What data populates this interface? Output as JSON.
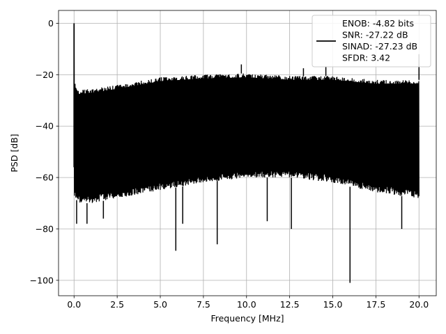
{
  "chart_data": {
    "type": "line",
    "xlabel": "Frequency [MHz]",
    "ylabel": "PSD [dB]",
    "xlim": [
      -0.9,
      21.0
    ],
    "ylim": [
      -106,
      5
    ],
    "xticks": [
      0.0,
      2.5,
      5.0,
      7.5,
      10.0,
      12.5,
      15.0,
      17.5,
      20.0
    ],
    "xtick_labels": [
      "0.0",
      "2.5",
      "5.0",
      "7.5",
      "10.0",
      "12.5",
      "15.0",
      "17.5",
      "20.0"
    ],
    "yticks": [
      0,
      -20,
      -40,
      -60,
      -80,
      -100
    ],
    "ytick_labels": [
      "0",
      "−20",
      "−40",
      "−60",
      "−80",
      "−100"
    ],
    "grid": true,
    "legend_position": "top-right",
    "series": [
      {
        "color": "#000000",
        "x_range": [
          0.0,
          20.0
        ],
        "peak": {
          "x": 0.0,
          "y": 0
        },
        "upper_envelope": {
          "x": [
            0.05,
            0.3,
            1.0,
            2.5,
            5.0,
            7.5,
            10.0,
            12.5,
            15.0,
            17.5,
            20.0
          ],
          "y": [
            -23,
            -26,
            -25.5,
            -24,
            -21,
            -20,
            -19.5,
            -20.5,
            -20.5,
            -22,
            -22
          ]
        },
        "lower_envelope": {
          "x": [
            0.05,
            0.3,
            1.0,
            2.5,
            5.0,
            7.5,
            10.0,
            12.5,
            15.0,
            17.5,
            20.0
          ],
          "y": [
            -68,
            -70,
            -70,
            -68,
            -65,
            -62,
            -60,
            -60,
            -62,
            -66,
            -68
          ]
        },
        "spikes_up": [
          {
            "x": 9.7,
            "y": -16
          },
          {
            "x": 14.6,
            "y": -17
          },
          {
            "x": 20.0,
            "y": -12
          },
          {
            "x": 13.3,
            "y": -17.5
          }
        ],
        "spikes_down": [
          {
            "x": 0.15,
            "y": -78
          },
          {
            "x": 0.75,
            "y": -78
          },
          {
            "x": 1.7,
            "y": -76
          },
          {
            "x": 5.9,
            "y": -88.5
          },
          {
            "x": 6.3,
            "y": -78
          },
          {
            "x": 8.3,
            "y": -86
          },
          {
            "x": 11.2,
            "y": -77
          },
          {
            "x": 12.6,
            "y": -80
          },
          {
            "x": 16.0,
            "y": -101
          },
          {
            "x": 19.0,
            "y": -80
          }
        ]
      }
    ],
    "legend": {
      "lines": [
        "ENOB: -4.82 bits",
        "SNR: -27.22 dB",
        "SINAD: -27.23 dB",
        "SFDR: 3.42"
      ]
    }
  }
}
